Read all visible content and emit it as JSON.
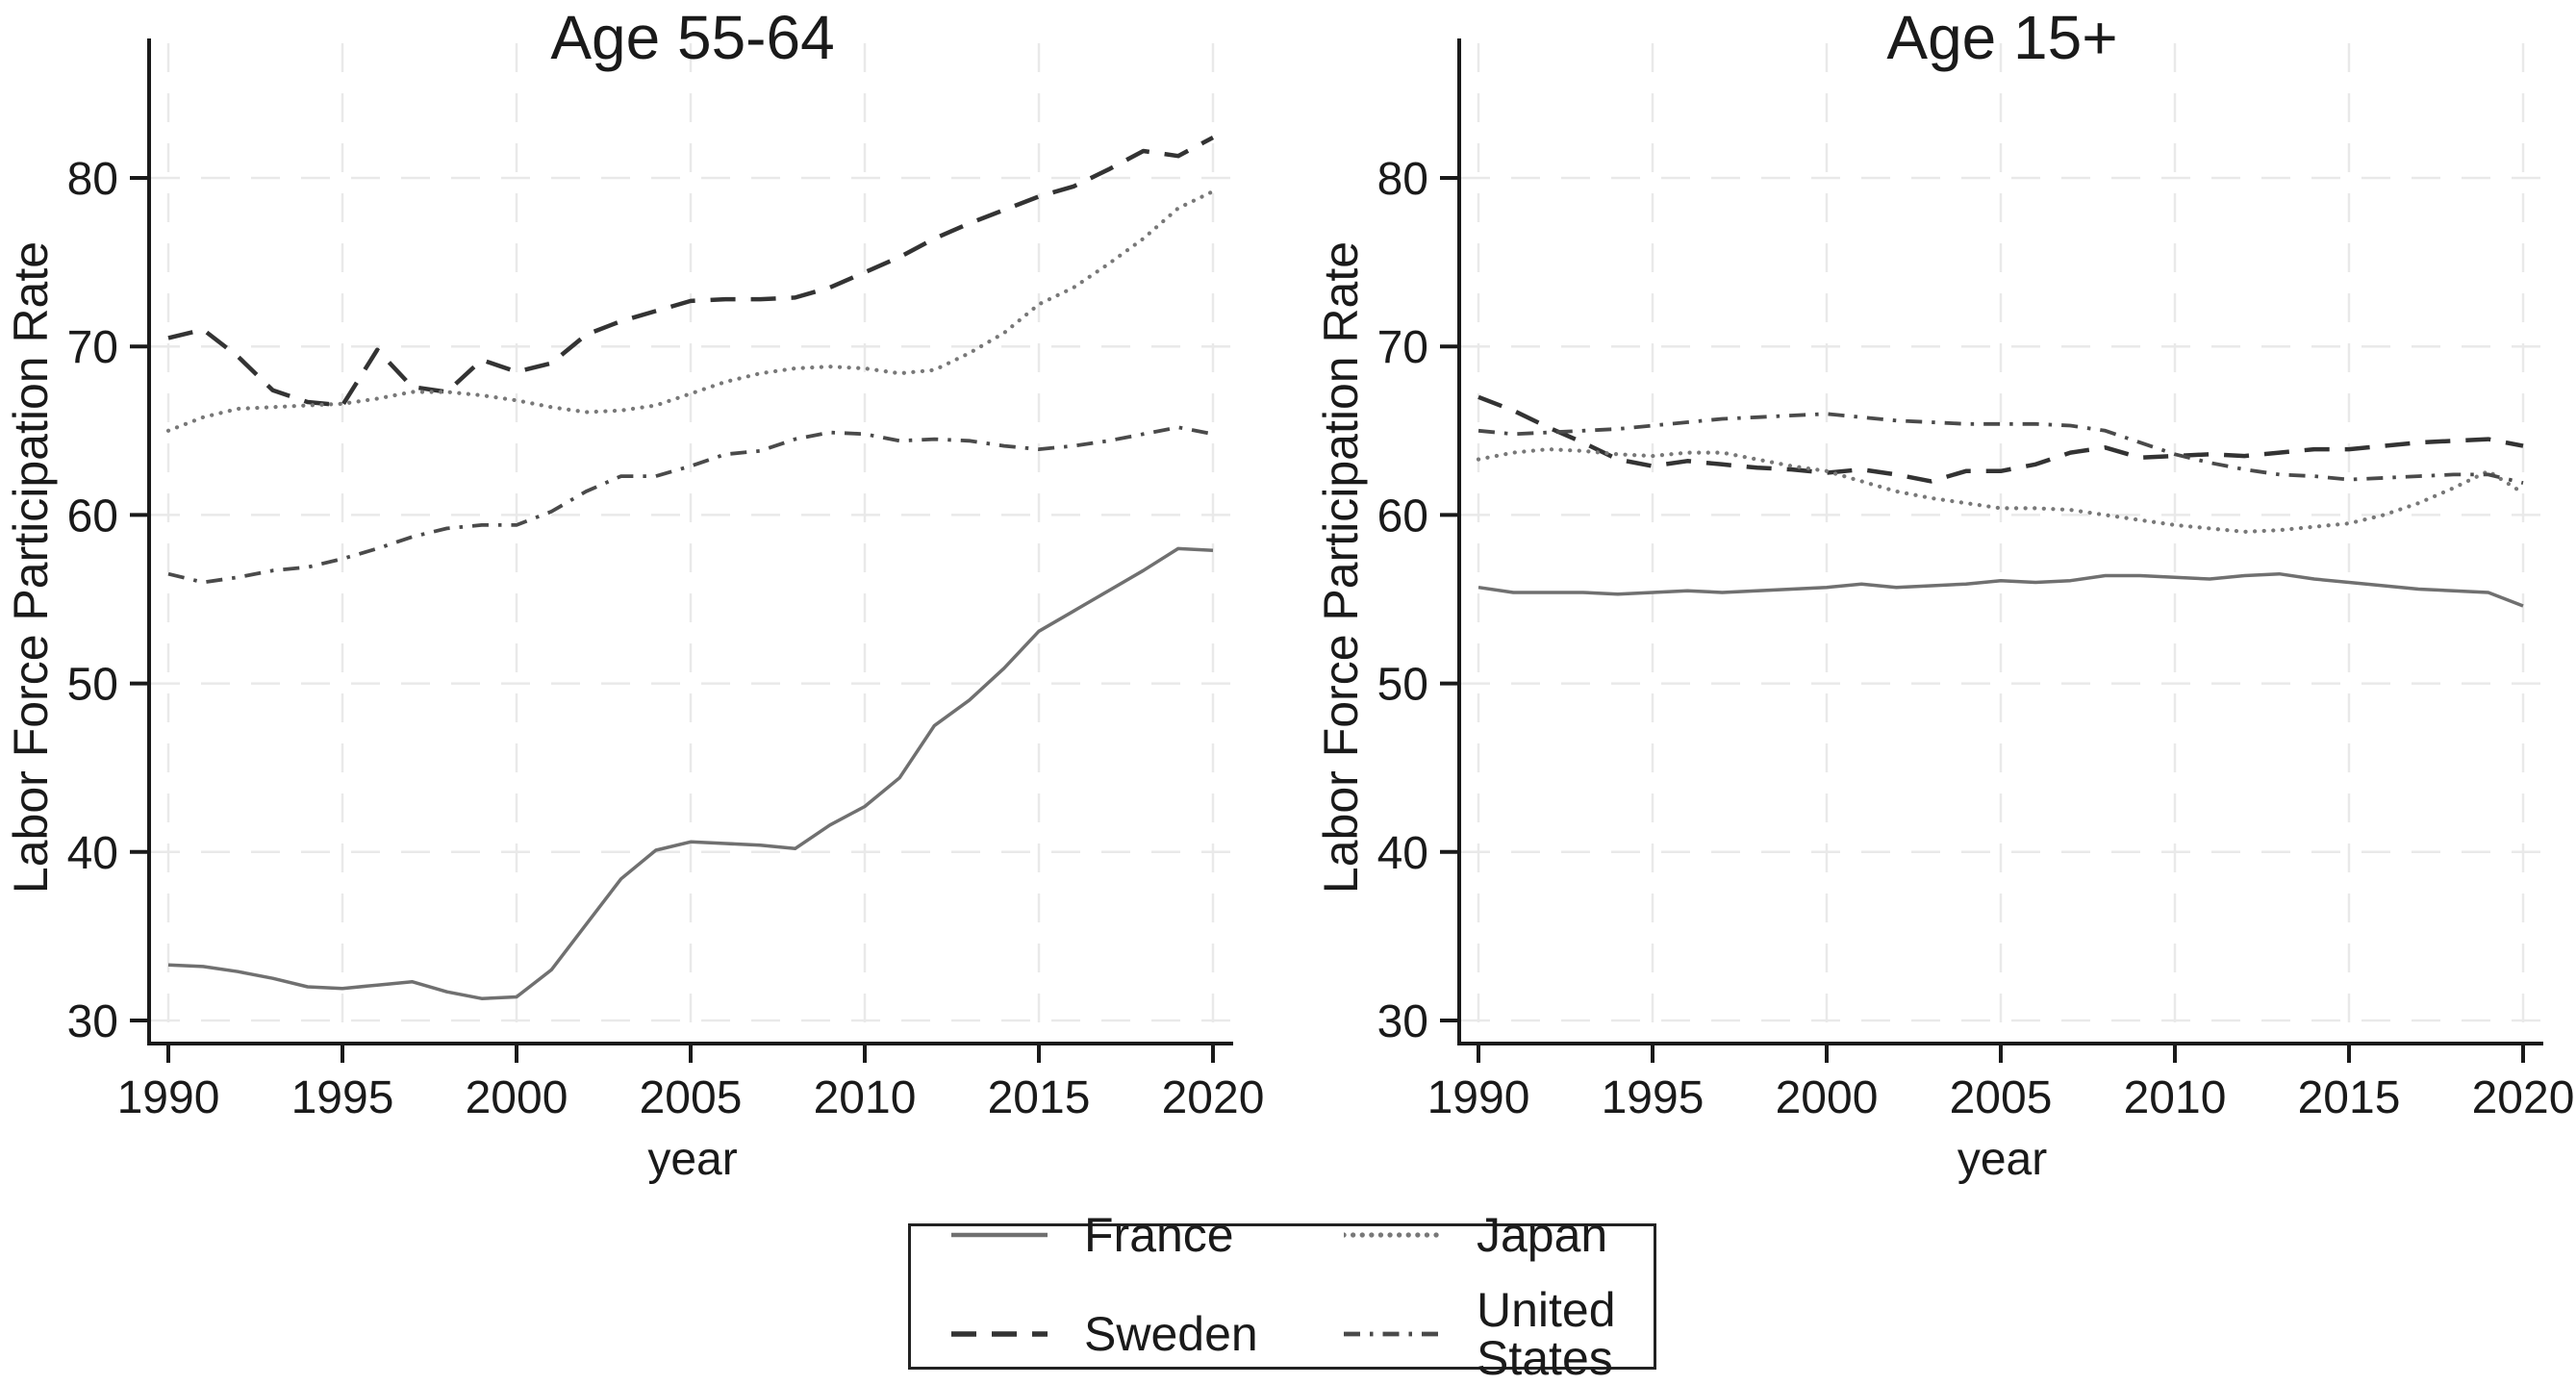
{
  "figure": {
    "background": "#ffffff",
    "text_color": "#1a1a1a",
    "gridline_color": "#e9e9e9",
    "axis_color": "#1a1a1a"
  },
  "axes": {
    "y_label": "Labor Force Participation Rate",
    "x_label": "year",
    "y_ticks": [
      30,
      40,
      50,
      60,
      70,
      80
    ],
    "x_ticks": [
      1990,
      1995,
      2000,
      2005,
      2010,
      2015,
      2020
    ],
    "grid": true,
    "legend_position": "bottom-center"
  },
  "legend": {
    "items": [
      {
        "label": "France",
        "style": "solid",
        "color": "#707070"
      },
      {
        "label": "Japan",
        "style": "dotted",
        "color": "#787878"
      },
      {
        "label": "Sweden",
        "style": "dashed",
        "color": "#333333"
      },
      {
        "label": "United States",
        "style": "dashdot",
        "color": "#4a4a4a"
      }
    ]
  },
  "chart_data": [
    {
      "type": "line",
      "title": "Age 55-64",
      "xlabel": "year",
      "ylabel": "Labor Force Participation Rate",
      "xlim": [
        1989.5,
        2020.6
      ],
      "ylim": [
        28,
        88.5
      ],
      "x": [
        1990,
        1991,
        1992,
        1993,
        1994,
        1995,
        1996,
        1997,
        1998,
        1999,
        2000,
        2001,
        2002,
        2003,
        2004,
        2005,
        2006,
        2007,
        2008,
        2009,
        2010,
        2011,
        2012,
        2013,
        2014,
        2015,
        2016,
        2017,
        2018,
        2019,
        2020
      ],
      "series": [
        {
          "name": "France",
          "style": "solid",
          "color": "#707070",
          "values": [
            33.3,
            33.2,
            32.9,
            32.5,
            32.0,
            31.9,
            32.1,
            32.3,
            31.7,
            31.3,
            31.4,
            33.0,
            35.7,
            38.4,
            40.1,
            40.6,
            40.5,
            40.4,
            40.2,
            41.6,
            42.7,
            44.4,
            47.5,
            49.0,
            50.9,
            53.1,
            54.3,
            55.5,
            56.7,
            58.0,
            57.9
          ]
        },
        {
          "name": "Sweden",
          "style": "dashed",
          "color": "#333333",
          "values": [
            70.5,
            71.0,
            69.4,
            67.4,
            66.7,
            66.5,
            69.8,
            67.6,
            67.3,
            69.2,
            68.5,
            69.0,
            70.7,
            71.5,
            72.1,
            72.7,
            72.8,
            72.8,
            72.9,
            73.5,
            74.4,
            75.3,
            76.4,
            77.3,
            78.1,
            78.9,
            79.5,
            80.5,
            81.6,
            81.3,
            82.4
          ]
        },
        {
          "name": "Japan",
          "style": "dotted",
          "color": "#787878",
          "values": [
            65.0,
            65.8,
            66.3,
            66.4,
            66.5,
            66.6,
            66.9,
            67.3,
            67.3,
            67.1,
            66.8,
            66.4,
            66.1,
            66.2,
            66.5,
            67.2,
            67.9,
            68.4,
            68.7,
            68.8,
            68.7,
            68.4,
            68.6,
            69.6,
            70.8,
            72.5,
            73.5,
            74.9,
            76.4,
            78.2,
            79.2
          ]
        },
        {
          "name": "United States",
          "style": "dashdot",
          "color": "#4a4a4a",
          "values": [
            56.5,
            56.0,
            56.3,
            56.7,
            56.9,
            57.4,
            58.0,
            58.7,
            59.2,
            59.4,
            59.4,
            60.2,
            61.4,
            62.3,
            62.3,
            62.9,
            63.6,
            63.8,
            64.5,
            64.9,
            64.8,
            64.4,
            64.5,
            64.4,
            64.1,
            63.9,
            64.1,
            64.4,
            64.8,
            65.2,
            64.8
          ]
        }
      ]
    },
    {
      "type": "line",
      "title": "Age 15+",
      "xlabel": "year",
      "ylabel": "Labor Force Participation Rate",
      "xlim": [
        1989.5,
        2020.6
      ],
      "ylim": [
        28,
        88.5
      ],
      "x": [
        1990,
        1991,
        1992,
        1993,
        1994,
        1995,
        1996,
        1997,
        1998,
        1999,
        2000,
        2001,
        2002,
        2003,
        2004,
        2005,
        2006,
        2007,
        2008,
        2009,
        2010,
        2011,
        2012,
        2013,
        2014,
        2015,
        2016,
        2017,
        2018,
        2019,
        2020
      ],
      "series": [
        {
          "name": "France",
          "style": "solid",
          "color": "#707070",
          "values": [
            55.7,
            55.4,
            55.4,
            55.4,
            55.3,
            55.4,
            55.5,
            55.4,
            55.5,
            55.6,
            55.7,
            55.9,
            55.7,
            55.8,
            55.9,
            56.1,
            56.0,
            56.1,
            56.4,
            56.4,
            56.3,
            56.2,
            56.4,
            56.5,
            56.2,
            56.0,
            55.8,
            55.6,
            55.5,
            55.4,
            54.6
          ]
        },
        {
          "name": "Sweden",
          "style": "dashed",
          "color": "#333333",
          "values": [
            67.0,
            66.2,
            65.2,
            64.3,
            63.3,
            62.9,
            63.2,
            63.0,
            62.8,
            62.7,
            62.5,
            62.7,
            62.4,
            62.0,
            62.6,
            62.6,
            63.0,
            63.7,
            64.0,
            63.4,
            63.5,
            63.6,
            63.5,
            63.7,
            63.9,
            63.9,
            64.1,
            64.3,
            64.4,
            64.5,
            64.1
          ]
        },
        {
          "name": "Japan",
          "style": "dotted",
          "color": "#787878",
          "values": [
            63.3,
            63.7,
            63.9,
            63.8,
            63.6,
            63.5,
            63.7,
            63.7,
            63.3,
            62.9,
            62.6,
            62.0,
            61.4,
            61.0,
            60.7,
            60.4,
            60.4,
            60.3,
            60.0,
            59.7,
            59.4,
            59.2,
            59.0,
            59.1,
            59.3,
            59.5,
            60.0,
            60.7,
            61.6,
            62.6,
            61.3
          ]
        },
        {
          "name": "United States",
          "style": "dashdot",
          "color": "#4a4a4a",
          "values": [
            65.0,
            64.8,
            64.9,
            65.0,
            65.1,
            65.3,
            65.5,
            65.7,
            65.8,
            65.9,
            66.0,
            65.8,
            65.6,
            65.5,
            65.4,
            65.4,
            65.4,
            65.3,
            65.0,
            64.3,
            63.6,
            63.1,
            62.7,
            62.4,
            62.3,
            62.1,
            62.2,
            62.3,
            62.4,
            62.4,
            61.9
          ]
        }
      ]
    }
  ]
}
